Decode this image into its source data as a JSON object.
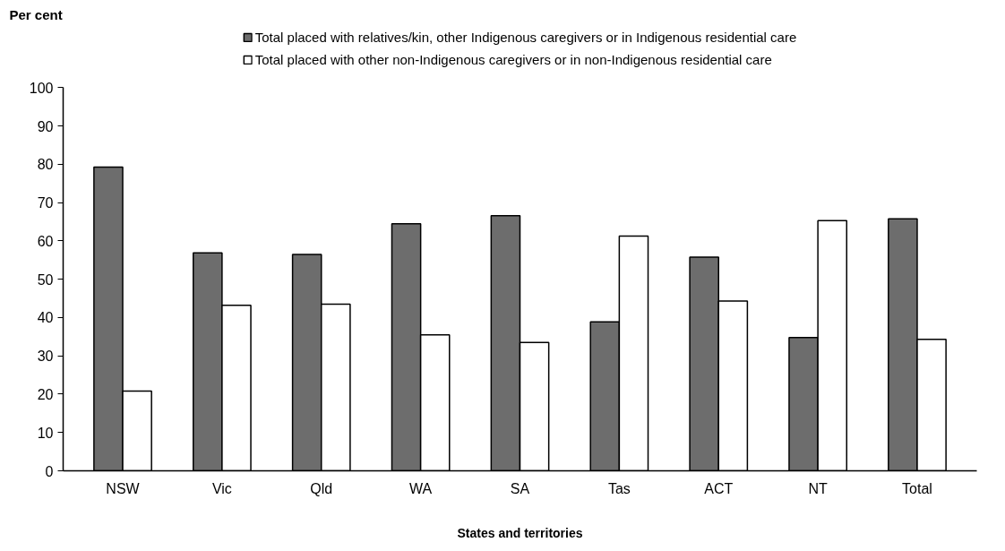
{
  "chart_data": {
    "type": "bar",
    "xlabel": "States and territories",
    "ylabel": "Per cent",
    "categories": [
      "NSW",
      "Vic",
      "Qld",
      "WA",
      "SA",
      "Tas",
      "ACT",
      "NT",
      "Total"
    ],
    "series": [
      {
        "name": "Total placed with relatives/kin, other Indigenous caregivers or in Indigenous residential care",
        "color": "#6d6d6d",
        "values": [
          79.3,
          56.9,
          56.5,
          64.5,
          66.6,
          38.9,
          55.8,
          34.8,
          65.8
        ]
      },
      {
        "name": "Total placed with other non-Indigenous caregivers or in non-Indigenous residential care",
        "color": "#ffffff",
        "values": [
          20.8,
          43.2,
          43.5,
          35.5,
          33.5,
          61.3,
          44.3,
          65.3,
          34.3
        ]
      }
    ],
    "ylim": [
      0,
      100
    ],
    "yticks": [
      0,
      10,
      20,
      30,
      40,
      50,
      60,
      70,
      80,
      90,
      100
    ],
    "grid": false,
    "legend": "top"
  }
}
